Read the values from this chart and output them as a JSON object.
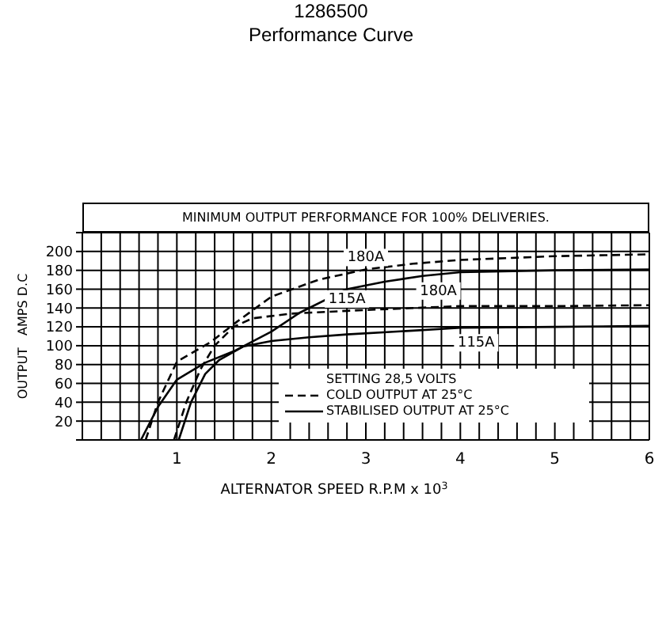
{
  "chart_data": {
    "type": "line",
    "title": "1286500",
    "subtitle": "Performance Curve",
    "annotations": [
      "MINIMUM OUTPUT PERFORMANCE FOR 100% DELIVERIES.",
      "SETTING 28,5 VOLTS",
      "COLD OUTPUT AT 25°C",
      "STABILISED OUTPUT AT 25°C"
    ],
    "xlabel": "ALTERNATOR SPEED  R.P.M x 10$^{3}$",
    "ylabel": "OUTPUT   AMPS D.C",
    "xlim": [
      0,
      6
    ],
    "xticks": [
      {
        "value": 0,
        "label": null
      },
      {
        "value": 0.2,
        "label": null
      },
      {
        "value": 0.4,
        "label": null
      },
      {
        "value": 0.6,
        "label": null
      },
      {
        "value": 0.8,
        "label": null
      },
      1,
      {
        "value": 1.2,
        "label": null
      },
      {
        "value": 1.4,
        "label": null
      },
      {
        "value": 1.6,
        "label": null
      },
      {
        "value": 1.8,
        "label": null
      },
      2,
      {
        "value": 2.2,
        "label": null
      },
      {
        "value": 2.4,
        "label": null
      },
      {
        "value": 2.6,
        "label": null
      },
      {
        "value": 2.8,
        "label": null
      },
      3,
      {
        "value": 3.2,
        "label": null
      },
      {
        "value": 3.4,
        "label": null
      },
      {
        "value": 3.6,
        "label": null
      },
      {
        "value": 3.8,
        "label": null
      },
      4,
      {
        "value": 4.2,
        "label": null
      },
      {
        "value": 4.4,
        "label": null
      },
      {
        "value": 4.6,
        "label": null
      },
      {
        "value": 4.8,
        "label": null
      },
      5,
      {
        "value": 5.2,
        "label": null
      },
      {
        "value": 5.4,
        "label": null
      },
      {
        "value": 5.6,
        "label": null
      },
      {
        "value": 5.8,
        "label": null
      },
      6
    ],
    "ylim": [
      0,
      220
    ],
    "yticks": [
      {
        "value": 0,
        "label": null
      },
      20,
      40,
      60,
      80,
      100,
      120,
      140,
      160,
      180,
      200,
      {
        "value": 220,
        "label": null
      }
    ],
    "grid": true,
    "marker": "none",
    "series": [
      {
        "name": "180A",
        "color": "#000000",
        "line_style": "dashed",
        "x": [
          0.67,
          0.8,
          1,
          1.36,
          1.63,
          2,
          2.5,
          3,
          3.5,
          4,
          5,
          6
        ],
        "values": [
          0,
          40,
          83,
          104,
          125,
          152,
          170,
          181,
          187,
          191,
          195,
          197
        ]
      },
      {
        "name": "180A",
        "color": "#000000",
        "line_style": "solid",
        "x": [
          0.62,
          0.8,
          1,
          1.3,
          1.6,
          2,
          2.3,
          2.8,
          3.2,
          3.6,
          4,
          5,
          6
        ],
        "values": [
          0,
          35,
          64,
          82,
          94,
          115,
          135,
          160,
          168,
          174,
          178,
          180,
          181
        ]
      },
      {
        "name": "115A",
        "color": "#000000",
        "line_style": "dashed",
        "x": [
          0.97,
          1.1,
          1.25,
          1.4,
          1.6,
          1.8,
          2.2,
          2.8,
          3.5,
          4,
          5,
          6
        ],
        "values": [
          0,
          40,
          75,
          100,
          120,
          129,
          134,
          137,
          140,
          142,
          142,
          143
        ]
      },
      {
        "name": "115A",
        "color": "#000000",
        "line_style": "solid",
        "x": [
          1.02,
          1.15,
          1.3,
          1.45,
          1.7,
          2,
          2.4,
          2.8,
          3.5,
          4,
          5,
          6
        ],
        "values": [
          0,
          40,
          70,
          85,
          99,
          105,
          109,
          112,
          116,
          119,
          120,
          121
        ]
      }
    ]
  }
}
